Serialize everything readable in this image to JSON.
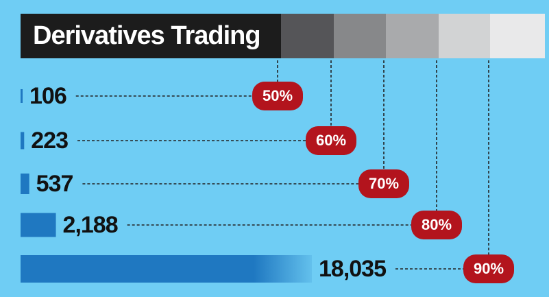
{
  "chart_data": {
    "type": "bar",
    "title": "Derivatives Trading",
    "categories": [
      "50%",
      "60%",
      "70%",
      "80%",
      "90%"
    ],
    "values": [
      106,
      223,
      537,
      2188,
      18035
    ],
    "value_labels": [
      "106",
      "223",
      "537",
      "2,188",
      "18,035"
    ],
    "color": "#1f78c1",
    "badge_color": "#b3141d"
  }
}
